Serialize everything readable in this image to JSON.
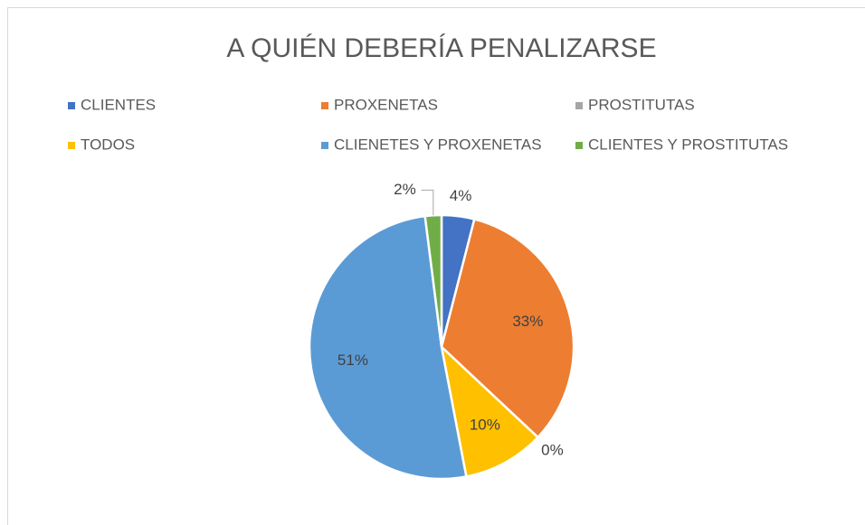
{
  "chart_data": {
    "type": "pie",
    "title": "A QUIÉN DEBERÍA PENALIZARSE",
    "categories": [
      "CLIENTES",
      "PROXENETAS",
      "PROSTITUTAS",
      "TODOS",
      "CLIENETES Y PROXENETAS",
      "CLIENTES Y PROSTITUTAS"
    ],
    "values": [
      4,
      33,
      0,
      10,
      51,
      2
    ],
    "value_labels": [
      "4%",
      "33%",
      "0%",
      "10%",
      "51%",
      "2%"
    ],
    "colors": [
      "#4472c4",
      "#ed7d31",
      "#a5a5a5",
      "#ffc000",
      "#5b9bd5",
      "#70ad47"
    ],
    "legend": "top"
  }
}
